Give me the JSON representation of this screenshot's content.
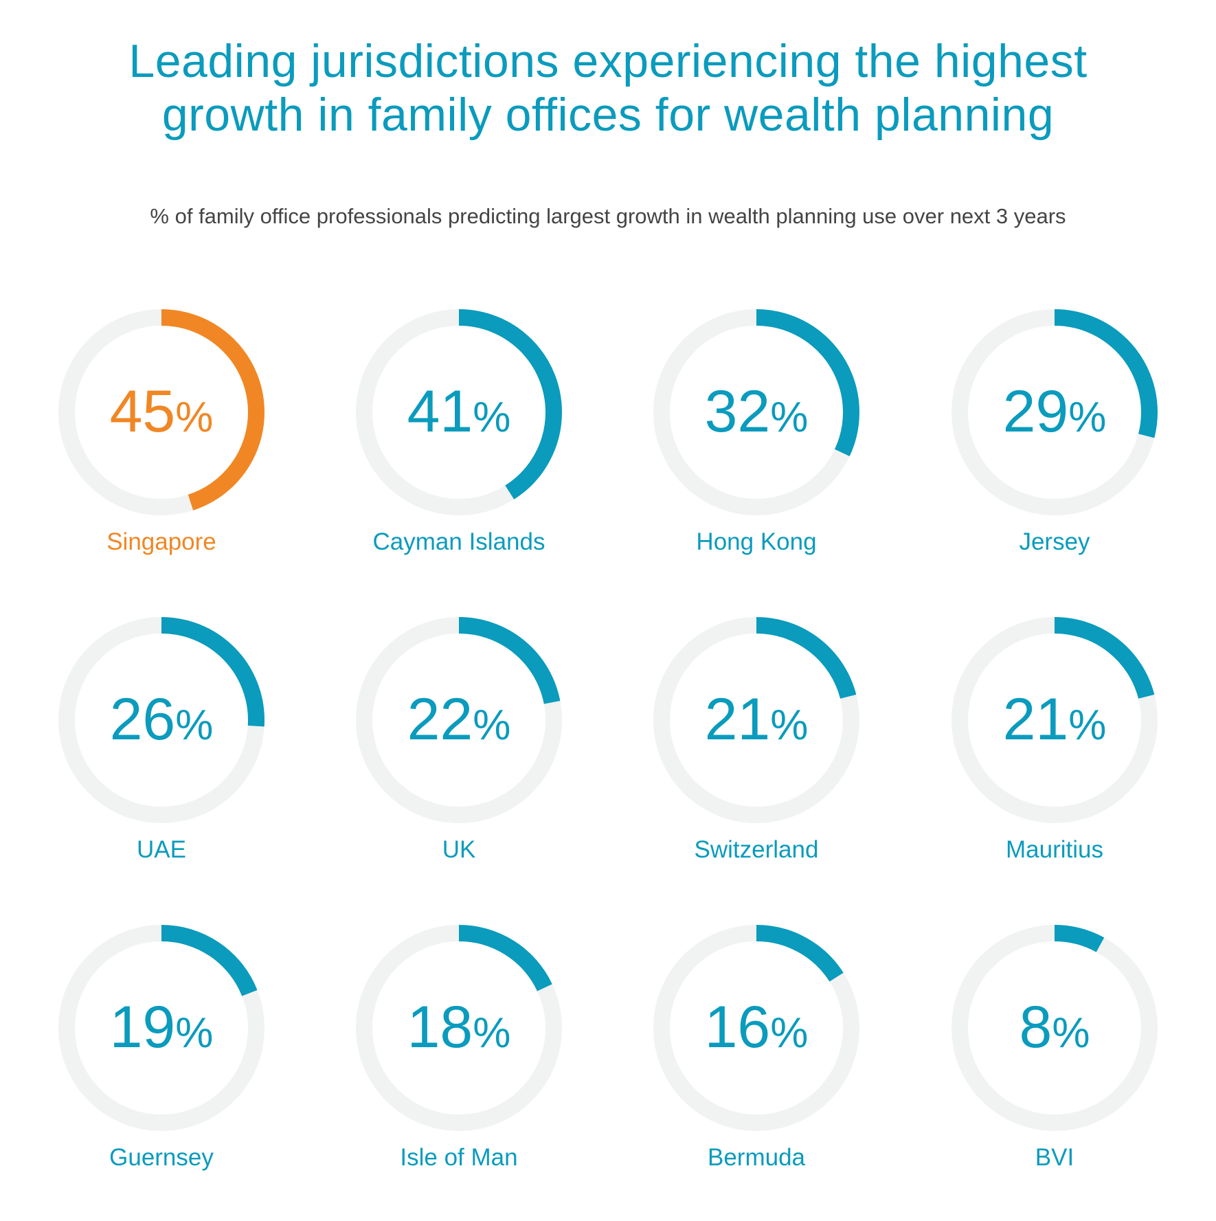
{
  "title_line1": "Leading jurisdictions experiencing the highest",
  "title_line2": "growth in family offices for wealth planning",
  "subtitle": "% of family office professionals predicting largest growth in wealth planning use over next 3 years",
  "colors": {
    "accent": "#0a9bbd",
    "highlight": "#f08724",
    "track": "#f1f2f2",
    "subtitle": "#444444"
  },
  "chart_data": {
    "type": "donut",
    "title": "Leading jurisdictions experiencing the highest growth in family offices for wealth planning",
    "subtitle": "% of family office professionals predicting largest growth in wealth planning use over next 3 years",
    "unit": "%",
    "max": 100,
    "items": [
      {
        "label": "Singapore",
        "value": 45,
        "highlight": true
      },
      {
        "label": "Cayman Islands",
        "value": 41,
        "highlight": false
      },
      {
        "label": "Hong Kong",
        "value": 32,
        "highlight": false
      },
      {
        "label": "Jersey",
        "value": 29,
        "highlight": false
      },
      {
        "label": "UAE",
        "value": 26,
        "highlight": false
      },
      {
        "label": "UK",
        "value": 22,
        "highlight": false
      },
      {
        "label": "Switzerland",
        "value": 21,
        "highlight": false
      },
      {
        "label": "Mauritius",
        "value": 21,
        "highlight": false
      },
      {
        "label": "Guernsey",
        "value": 19,
        "highlight": false
      },
      {
        "label": "Isle of Man",
        "value": 18,
        "highlight": false
      },
      {
        "label": "Bermuda",
        "value": 16,
        "highlight": false
      },
      {
        "label": "BVI",
        "value": 8,
        "highlight": false
      }
    ]
  }
}
